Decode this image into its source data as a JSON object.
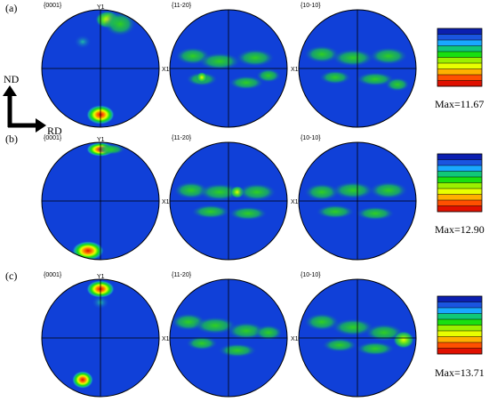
{
  "colors": {
    "background_blue": "#1040d8",
    "scale": [
      "#0b1fb0",
      "#1a55e0",
      "#19a8ff",
      "#10c878",
      "#18e010",
      "#9bf000",
      "#e8ff00",
      "#ffb000",
      "#ff5000",
      "#e01000"
    ]
  },
  "axes": {
    "nd": "ND",
    "rd": "RD"
  },
  "rows": [
    {
      "label": "(a)",
      "max_label": "Max=11.67",
      "poles": [
        {
          "name": "pole-figure-0001",
          "label": "{0001}",
          "y_label": "Y1",
          "x_label": ""
        },
        {
          "name": "pole-figure-11-20",
          "label": "{11-20}",
          "y_label": "",
          "x_label": "X1"
        },
        {
          "name": "pole-figure-10-10",
          "label": "{10-10}",
          "y_label": "",
          "x_label": "X1"
        }
      ]
    },
    {
      "label": "(b)",
      "max_label": "Max=12.90",
      "poles": [
        {
          "name": "pole-figure-0001",
          "label": "{0001}",
          "y_label": "Y1",
          "x_label": ""
        },
        {
          "name": "pole-figure-11-20",
          "label": "{11-20}",
          "y_label": "",
          "x_label": "X1"
        },
        {
          "name": "pole-figure-10-10",
          "label": "{10-10}",
          "y_label": "",
          "x_label": "X1"
        }
      ]
    },
    {
      "label": "(c)",
      "max_label": "Max=13.71",
      "poles": [
        {
          "name": "pole-figure-0001",
          "label": "{0001}",
          "y_label": "Y1",
          "x_label": ""
        },
        {
          "name": "pole-figure-11-20",
          "label": "{11-20}",
          "y_label": "",
          "x_label": "X1"
        },
        {
          "name": "pole-figure-10-10",
          "label": "{10-10}",
          "y_label": "",
          "x_label": "X1"
        }
      ]
    }
  ]
}
